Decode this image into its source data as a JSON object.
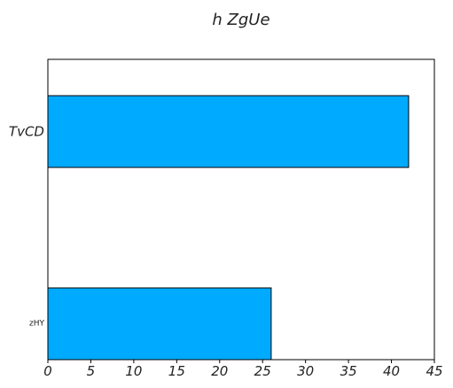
{
  "chart_data": {
    "type": "bar",
    "orientation": "horizontal",
    "title": "h  ZgUe",
    "categories": [
      "TvCD",
      "zHY"
    ],
    "values": [
      42,
      26
    ],
    "xlabel": "",
    "ylabel": "",
    "xlim": [
      0,
      45
    ],
    "xticks": [
      0,
      5,
      10,
      15,
      20,
      25,
      30,
      35,
      40,
      45
    ],
    "grid": false,
    "legend": "none",
    "bar_color": "#00aaff",
    "bar_edge_color": "#000000"
  }
}
